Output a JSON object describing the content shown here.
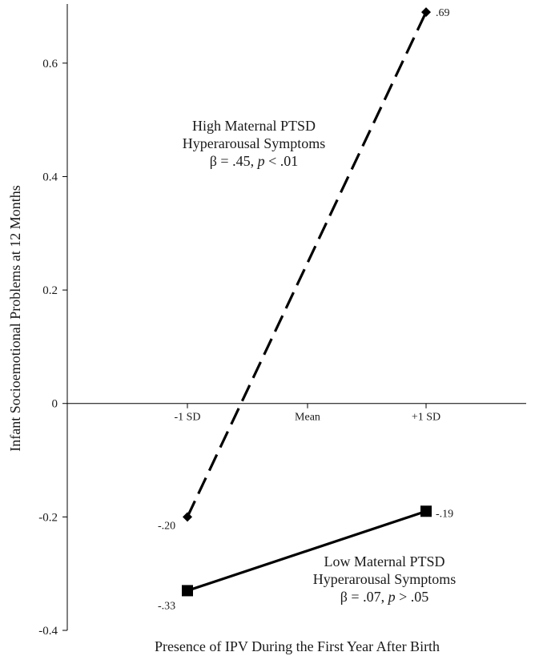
{
  "chart_data": {
    "type": "line",
    "title": "",
    "xlabel": "Presence of IPV During the First Year After Birth",
    "ylabel": "Infant Socioemotional Problems at 12 Months",
    "categories": [
      "-1 SD",
      "Mean",
      "+1 SD"
    ],
    "ylim": [
      -0.4,
      0.7
    ],
    "yticks": [
      -0.4,
      -0.2,
      0,
      0.2,
      0.4,
      0.6
    ],
    "ytick_labels": [
      "-0.4",
      "-0.2",
      "0",
      "0.2",
      "0.4",
      "0.6"
    ],
    "grid": false,
    "legend": "none",
    "series": [
      {
        "line_style": "dashed",
        "marker": "diamond",
        "points": [
          {
            "category": "-1 SD",
            "y": -0.2,
            "label": "-.20"
          },
          {
            "category": "+1 SD",
            "y": 0.69,
            "label": ".69"
          }
        ],
        "annotation": {
          "line1": "High Maternal PTSD",
          "line2": "Hyperarousal Symptoms",
          "line3_prefix": "β = .45, ",
          "line3_italic": "p",
          "line3_suffix": " < .01"
        }
      },
      {
        "line_style": "solid",
        "marker": "square",
        "points": [
          {
            "category": "-1 SD",
            "y": -0.33,
            "label": "-.33"
          },
          {
            "category": "+1 SD",
            "y": -0.19,
            "label": "-.19"
          }
        ],
        "annotation": {
          "line1": "Low Maternal PTSD",
          "line2": "Hyperarousal Symptoms",
          "line3_prefix": "β = .07, ",
          "line3_italic": "p",
          "line3_suffix": " > .05"
        }
      }
    ],
    "colors": {
      "line": "#000000",
      "text": "#1a1a1a"
    }
  }
}
